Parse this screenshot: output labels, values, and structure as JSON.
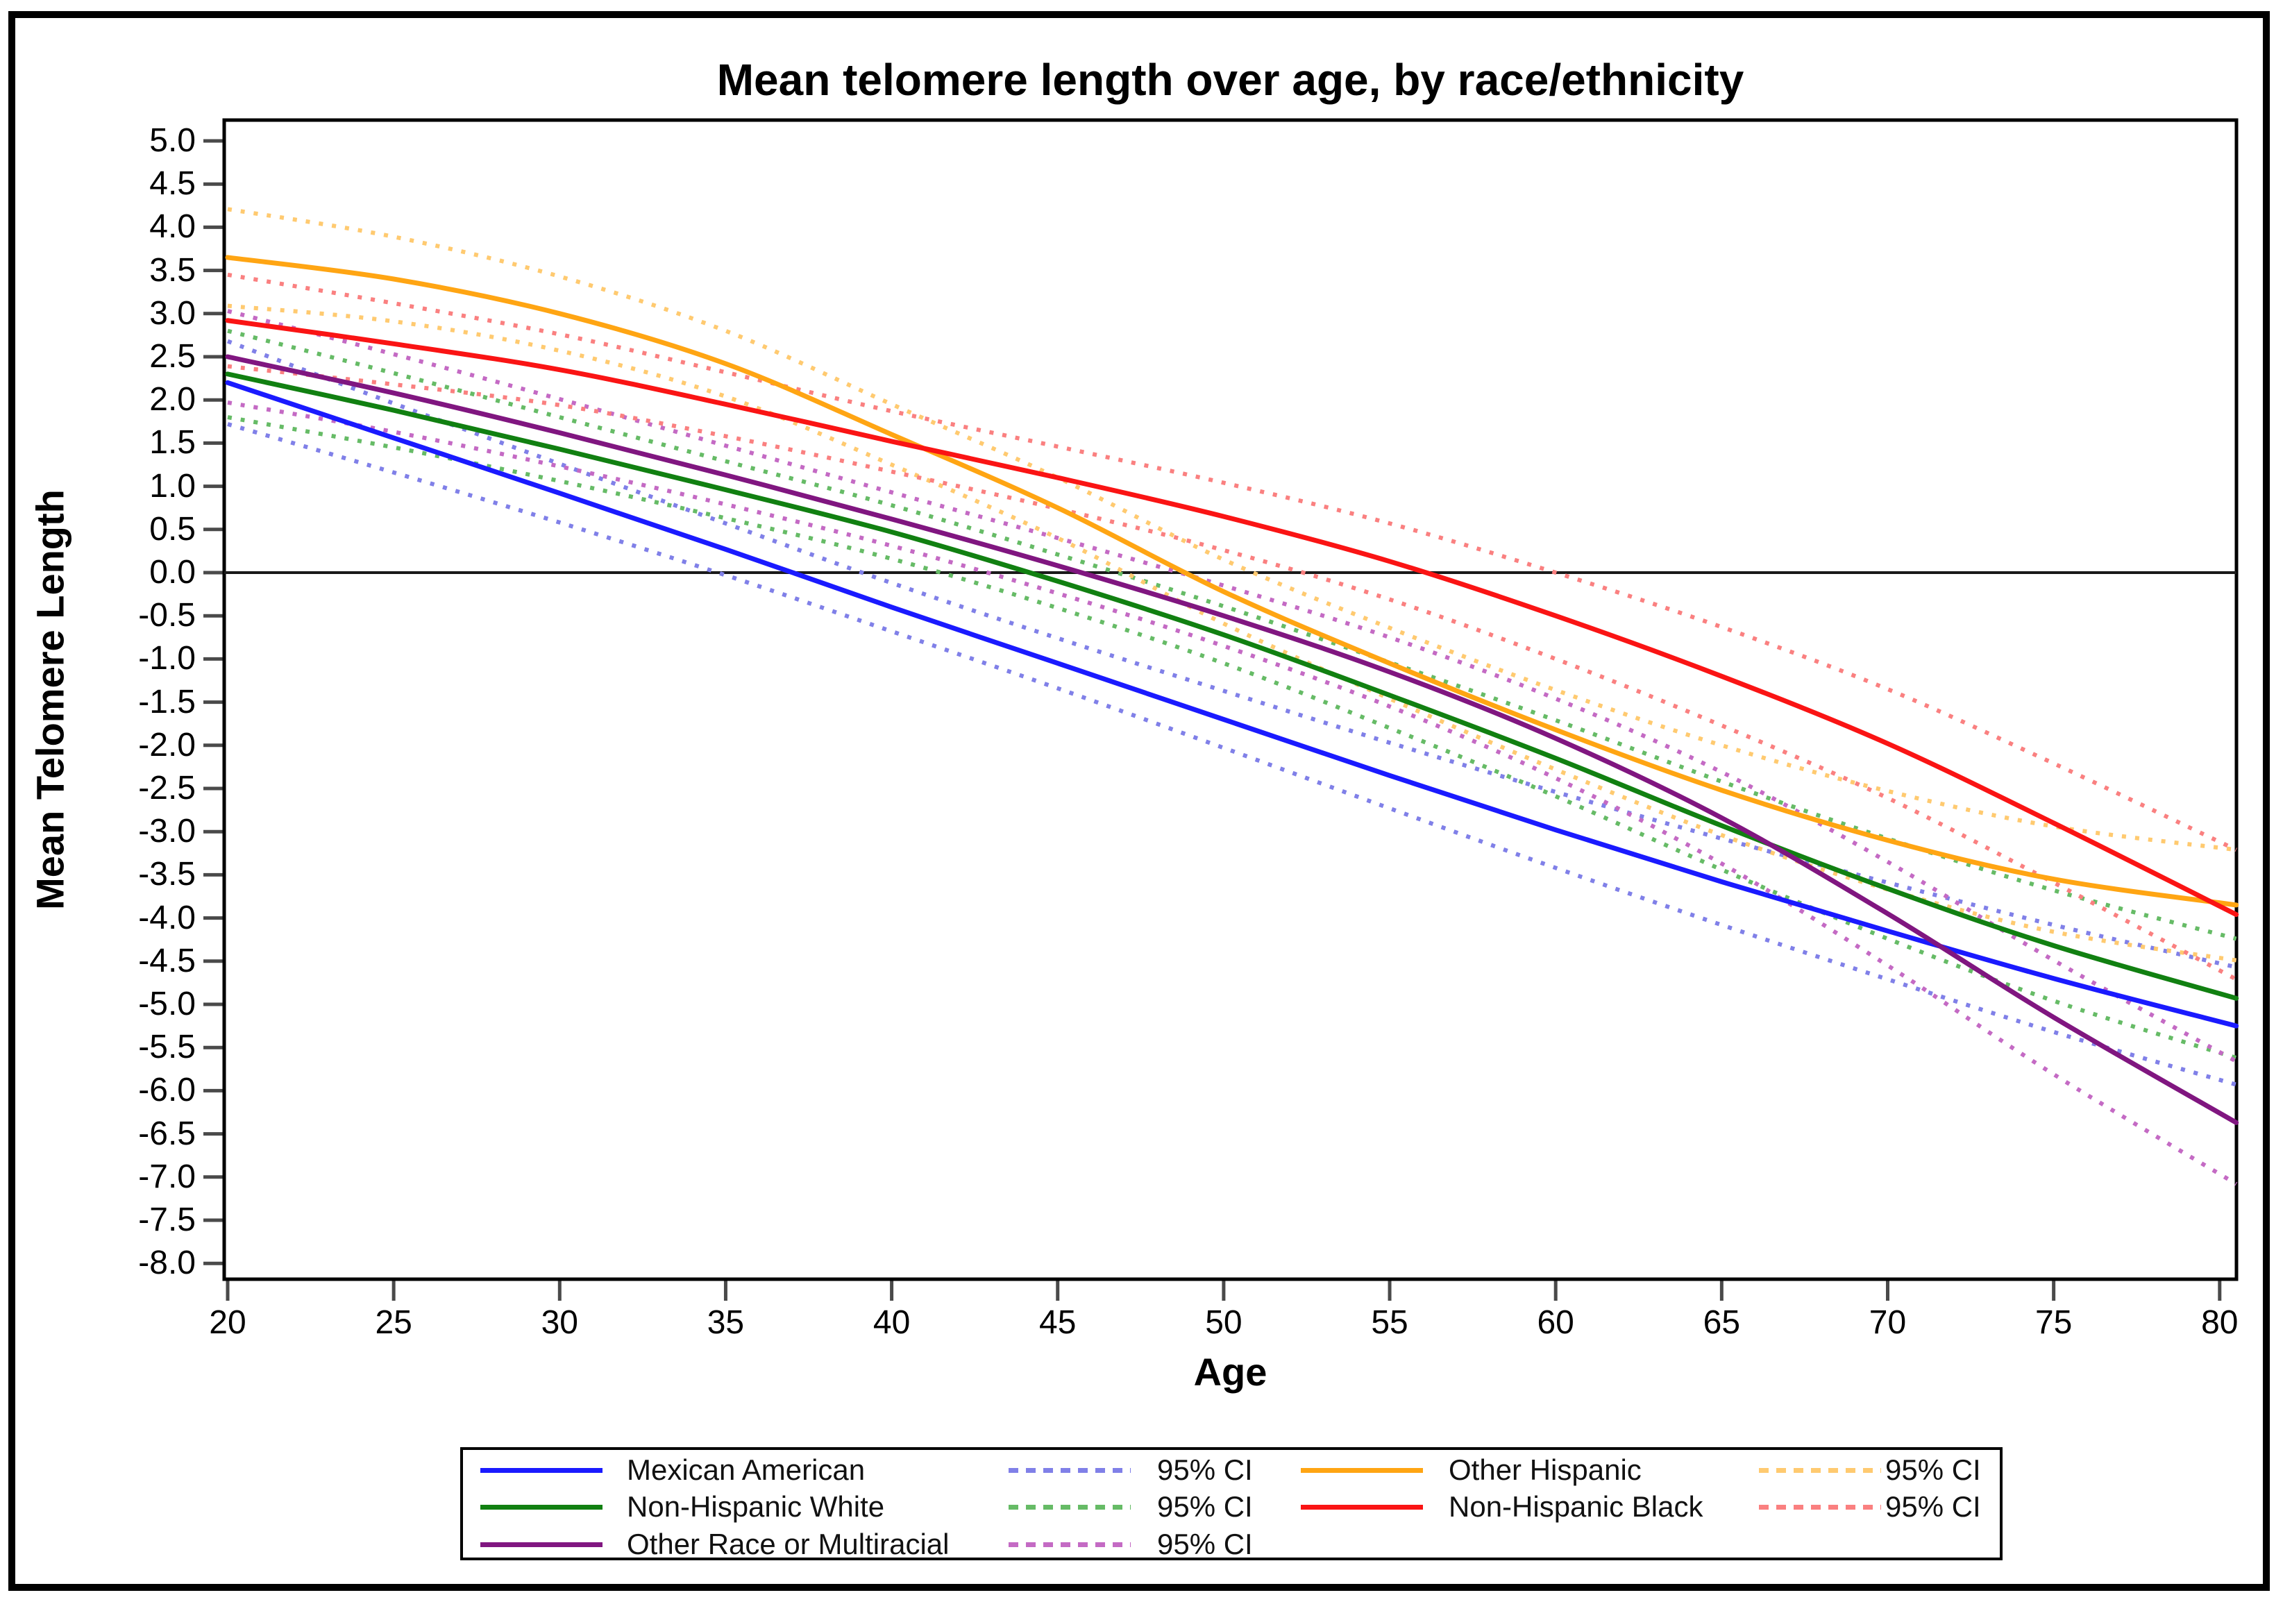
{
  "chart_data": {
    "type": "line",
    "title": "Mean telomere length over age, by race/ethnicity",
    "xlabel": "Age",
    "ylabel": "Mean Telomere Length",
    "x_ticks": [
      20,
      25,
      30,
      35,
      40,
      45,
      50,
      55,
      60,
      65,
      70,
      75,
      80
    ],
    "y_ticks": [
      5.0,
      4.5,
      4.0,
      3.5,
      3.0,
      2.5,
      2.0,
      1.5,
      1.0,
      0.5,
      0.0,
      -0.5,
      -1.0,
      -1.5,
      -2.0,
      -2.5,
      -3.0,
      -3.5,
      -4.0,
      -4.5,
      -5.0,
      -5.5,
      -6.0,
      -6.5,
      -7.0,
      -7.5,
      -8.0
    ],
    "xlim": [
      19.9,
      80.55
    ],
    "ylim": [
      -8.15,
      5.25
    ],
    "grid": false,
    "zero_reference_line": 0.0,
    "legend_position": "bottom",
    "ci_label": "95% CI",
    "ages": [
      20,
      25,
      30,
      35,
      40,
      45,
      50,
      55,
      60,
      65,
      70,
      75,
      80.5
    ],
    "series": [
      {
        "name": "Mexican American",
        "color": "#1a1aff",
        "ci_color": "#8080e8",
        "mean": [
          2.2,
          1.56,
          0.92,
          0.27,
          -0.4,
          -1.05,
          -1.7,
          -2.35,
          -2.98,
          -3.58,
          -4.15,
          -4.7,
          -5.25
        ],
        "ci_half_width": [
          0.48,
          0.4,
          0.34,
          0.3,
          0.28,
          0.29,
          0.33,
          0.38,
          0.44,
          0.5,
          0.56,
          0.62,
          0.68
        ]
      },
      {
        "name": "Non-Hispanic White",
        "color": "#118011",
        "ci_color": "#66bb66",
        "mean": [
          2.3,
          1.88,
          1.43,
          0.96,
          0.47,
          -0.1,
          -0.72,
          -1.42,
          -2.15,
          -2.93,
          -3.66,
          -4.32,
          -4.93
        ],
        "ci_half_width": [
          0.5,
          0.43,
          0.37,
          0.33,
          0.31,
          0.31,
          0.33,
          0.38,
          0.44,
          0.51,
          0.58,
          0.64,
          0.69
        ]
      },
      {
        "name": "Other Race or Multiracial",
        "color": "#801680",
        "ci_color": "#c46ac4",
        "mean": [
          2.5,
          2.08,
          1.62,
          1.13,
          0.62,
          0.08,
          -0.5,
          -1.15,
          -1.92,
          -2.84,
          -3.95,
          -5.15,
          -6.37
        ],
        "ci_half_width": [
          0.53,
          0.45,
          0.39,
          0.34,
          0.31,
          0.32,
          0.35,
          0.4,
          0.46,
          0.53,
          0.6,
          0.66,
          0.71
        ]
      },
      {
        "name": "Other Hispanic",
        "color": "#ffa513",
        "ci_color": "#ffca70",
        "mean": [
          3.65,
          3.4,
          3.0,
          2.42,
          1.6,
          0.75,
          -0.22,
          -1.05,
          -1.82,
          -2.52,
          -3.1,
          -3.55,
          -3.85
        ],
        "ci_half_width": [
          0.56,
          0.49,
          0.43,
          0.38,
          0.35,
          0.35,
          0.37,
          0.41,
          0.46,
          0.52,
          0.57,
          0.61,
          0.64
        ]
      },
      {
        "name": "Non-Hispanic Black",
        "color": "#fa1414",
        "ci_color": "#fa8080",
        "mean": [
          2.92,
          2.65,
          2.35,
          1.95,
          1.52,
          1.1,
          0.65,
          0.13,
          -0.5,
          -1.2,
          -1.98,
          -2.9,
          -3.96
        ],
        "ci_half_width": [
          0.53,
          0.47,
          0.41,
          0.37,
          0.35,
          0.36,
          0.39,
          0.44,
          0.5,
          0.57,
          0.63,
          0.69,
          0.75
        ]
      }
    ]
  },
  "legend": {
    "rows": [
      [
        {
          "type": "series",
          "series": 0
        },
        {
          "type": "ci",
          "series": 0
        },
        {
          "type": "series",
          "series": 3
        },
        {
          "type": "ci",
          "series": 3
        }
      ],
      [
        {
          "type": "series",
          "series": 1
        },
        {
          "type": "ci",
          "series": 1
        },
        {
          "type": "series",
          "series": 4
        },
        {
          "type": "ci",
          "series": 4
        }
      ],
      [
        {
          "type": "series",
          "series": 2
        },
        {
          "type": "ci",
          "series": 2
        }
      ]
    ]
  }
}
